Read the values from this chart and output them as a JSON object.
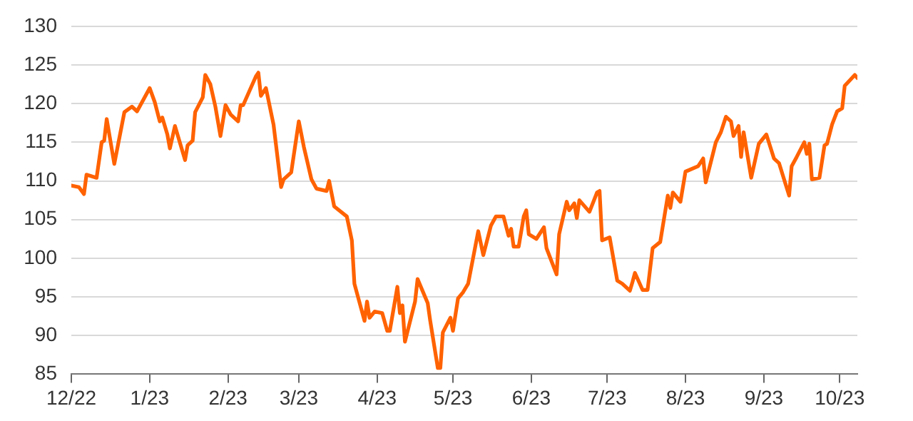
{
  "chart_data": {
    "type": "line",
    "color": "#ff6200",
    "grid": "y",
    "legend": false,
    "marker": "none",
    "line_style": "solid",
    "xlim": [
      "2022-12-01",
      "2023-10-08"
    ],
    "xticks": [
      {
        "value": "2022-12-01",
        "label": "12/22"
      },
      {
        "value": "2023-01-01",
        "label": "1/23"
      },
      {
        "value": "2023-02-01",
        "label": "2/23"
      },
      {
        "value": "2023-03-01",
        "label": "3/23"
      },
      {
        "value": "2023-04-01",
        "label": "4/23"
      },
      {
        "value": "2023-05-01",
        "label": "5/23"
      },
      {
        "value": "2023-06-01",
        "label": "6/23"
      },
      {
        "value": "2023-07-01",
        "label": "7/23"
      },
      {
        "value": "2023-08-01",
        "label": "8/23"
      },
      {
        "value": "2023-09-01",
        "label": "9/23"
      },
      {
        "value": "2023-10-01",
        "label": "10/23"
      }
    ],
    "ylim": [
      85,
      130
    ],
    "yticks": [
      85,
      90,
      95,
      100,
      105,
      110,
      115,
      120,
      125,
      130
    ],
    "x": [
      "2022-12-01",
      "2022-12-04",
      "2022-12-06",
      "2022-12-07",
      "2022-12-11",
      "2022-12-13",
      "2022-12-14",
      "2022-12-15",
      "2022-12-18",
      "2022-12-22",
      "2022-12-25",
      "2022-12-27",
      "2023-01-01",
      "2023-01-03",
      "2023-01-05",
      "2023-01-06",
      "2023-01-08",
      "2023-01-09",
      "2023-01-11",
      "2023-01-15",
      "2023-01-16",
      "2023-01-18",
      "2023-01-19",
      "2023-01-22",
      "2023-01-23",
      "2023-01-25",
      "2023-01-27",
      "2023-01-29",
      "2023-01-31",
      "2023-02-02",
      "2023-02-05",
      "2023-02-06",
      "2023-02-07",
      "2023-02-12",
      "2023-02-13",
      "2023-02-14",
      "2023-02-16",
      "2023-02-19",
      "2023-02-22",
      "2023-02-23",
      "2023-02-26",
      "2023-03-01",
      "2023-03-03",
      "2023-03-06",
      "2023-03-08",
      "2023-03-12",
      "2023-03-13",
      "2023-03-15",
      "2023-03-20",
      "2023-03-22",
      "2023-03-23",
      "2023-03-27",
      "2023-03-28",
      "2023-03-29",
      "2023-03-31",
      "2023-04-03",
      "2023-04-05",
      "2023-04-06",
      "2023-04-09",
      "2023-04-10",
      "2023-04-11",
      "2023-04-12",
      "2023-04-16",
      "2023-04-17",
      "2023-04-21",
      "2023-04-22",
      "2023-04-25",
      "2023-04-26",
      "2023-04-27",
      "2023-04-30",
      "2023-05-01",
      "2023-05-03",
      "2023-05-05",
      "2023-05-07",
      "2023-05-11",
      "2023-05-13",
      "2023-05-16",
      "2023-05-18",
      "2023-05-21",
      "2023-05-23",
      "2023-05-24",
      "2023-05-25",
      "2023-05-27",
      "2023-05-29",
      "2023-05-30",
      "2023-05-31",
      "2023-06-03",
      "2023-06-06",
      "2023-06-07",
      "2023-06-11",
      "2023-06-12",
      "2023-06-15",
      "2023-06-16",
      "2023-06-18",
      "2023-06-19",
      "2023-06-20",
      "2023-06-24",
      "2023-06-27",
      "2023-06-28",
      "2023-06-29",
      "2023-07-02",
      "2023-07-05",
      "2023-07-07",
      "2023-07-10",
      "2023-07-11",
      "2023-07-12",
      "2023-07-15",
      "2023-07-17",
      "2023-07-19",
      "2023-07-22",
      "2023-07-25",
      "2023-07-26",
      "2023-07-27",
      "2023-07-30",
      "2023-08-01",
      "2023-08-06",
      "2023-08-08",
      "2023-08-09",
      "2023-08-13",
      "2023-08-15",
      "2023-08-17",
      "2023-08-19",
      "2023-08-20",
      "2023-08-22",
      "2023-08-23",
      "2023-08-24",
      "2023-08-27",
      "2023-08-30",
      "2023-09-02",
      "2023-09-05",
      "2023-09-07",
      "2023-09-09",
      "2023-09-11",
      "2023-09-12",
      "2023-09-14",
      "2023-09-17",
      "2023-09-18",
      "2023-09-19",
      "2023-09-20",
      "2023-09-23",
      "2023-09-25",
      "2023-09-26",
      "2023-09-28",
      "2023-09-30",
      "2023-10-02",
      "2023-10-03",
      "2023-10-07",
      "2023-10-08"
    ],
    "values": [
      109.4,
      109.2,
      108.3,
      110.8,
      110.4,
      115,
      115.2,
      118,
      112.2,
      118.9,
      119.6,
      119,
      122,
      120.2,
      117.7,
      118.2,
      116,
      114.2,
      117.1,
      112.7,
      114.6,
      115.2,
      118.9,
      120.8,
      123.7,
      122.5,
      119.6,
      115.8,
      119.8,
      118.6,
      117.7,
      119.8,
      119.8,
      123.5,
      124,
      121,
      122,
      117.3,
      109.2,
      110.2,
      111.1,
      117.7,
      114.4,
      110.2,
      109,
      108.7,
      110,
      106.7,
      105.4,
      102.3,
      96.7,
      91.9,
      94.4,
      92.3,
      93.1,
      92.9,
      90.6,
      90.6,
      96.3,
      92.9,
      93.9,
      89.2,
      94.4,
      97.3,
      94.2,
      91.9,
      85.8,
      85.8,
      90.4,
      92.3,
      90.6,
      94.8,
      95.6,
      96.7,
      103.5,
      100.4,
      104.2,
      105.4,
      105.4,
      102.9,
      103.8,
      101.5,
      101.5,
      105.4,
      106.2,
      103.1,
      102.5,
      104,
      101.3,
      97.9,
      103.1,
      107.3,
      106.2,
      107.1,
      105.2,
      107.5,
      106,
      108.5,
      108.7,
      102.3,
      102.7,
      97.1,
      96.7,
      95.8,
      96.9,
      98.1,
      95.9,
      95.9,
      101.3,
      102.1,
      108.1,
      106.5,
      108.5,
      107.3,
      111.2,
      111.9,
      112.9,
      109.8,
      115,
      116.3,
      118.3,
      117.7,
      115.8,
      117.1,
      113.1,
      116.3,
      110.4,
      114.8,
      116,
      112.9,
      112.3,
      110.2,
      108.1,
      111.9,
      113.1,
      115,
      113.5,
      114.8,
      110.2,
      110.4,
      114.6,
      114.8,
      117.3,
      119,
      119.4,
      122.3,
      123.7,
      123.3
    ]
  }
}
